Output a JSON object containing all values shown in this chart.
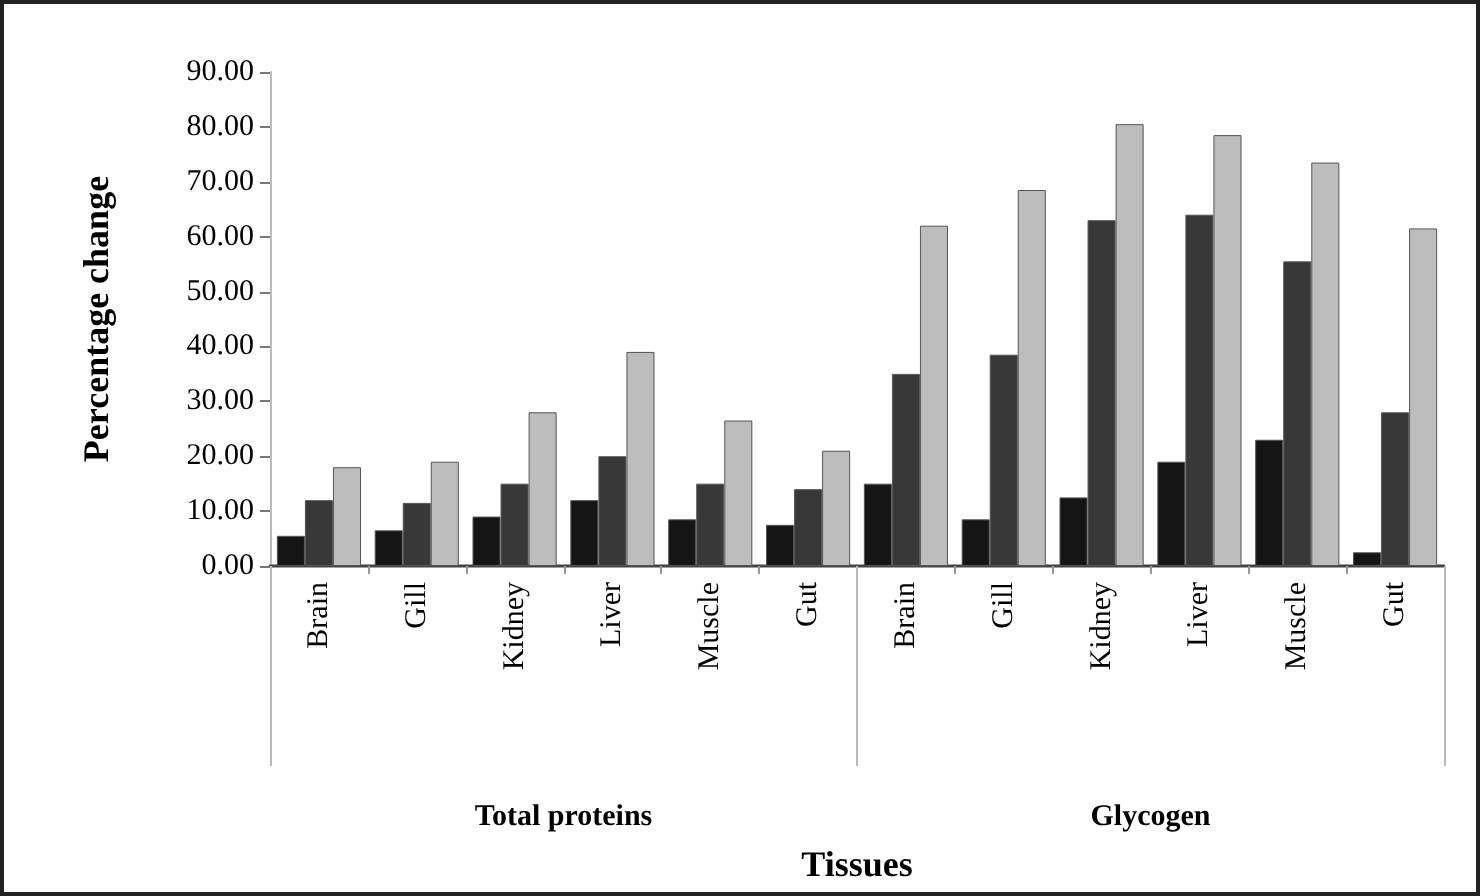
{
  "chart_data": {
    "type": "bar",
    "xlabel": "Tissues",
    "ylabel": "Percentage change",
    "categories": [
      "Brain",
      "Gill",
      "Kidney",
      "Liver",
      "Muscle",
      "Gut",
      "Brain",
      "Gill",
      "Kidney",
      "Liver",
      "Muscle",
      "Gut"
    ],
    "annotations": [
      "Total proteins",
      "Glycogen"
    ],
    "series": [
      {
        "color": "#151515",
        "values": [
          5.5,
          6.5,
          9,
          12,
          8.5,
          7.5,
          15,
          8.5,
          12.5,
          19,
          23,
          2.5
        ]
      },
      {
        "color": "#383838",
        "values": [
          12,
          11.5,
          15,
          20,
          15,
          14,
          35,
          38.5,
          63,
          64,
          55.5,
          28
        ]
      },
      {
        "color": "#bdbdbd",
        "values": [
          18,
          19,
          28,
          39,
          26.5,
          21,
          62,
          68.5,
          80.5,
          78.5,
          73.5,
          61.5
        ]
      }
    ],
    "ylim": [
      0,
      90
    ],
    "yticks": [
      {
        "value": 0,
        "label": "0.00"
      },
      {
        "value": 10,
        "label": "10.00"
      },
      {
        "value": 20,
        "label": "20.00"
      },
      {
        "value": 30,
        "label": "30.00"
      },
      {
        "value": 40,
        "label": "40.00"
      },
      {
        "value": 50,
        "label": "50.00"
      },
      {
        "value": 60,
        "label": "60.00"
      },
      {
        "value": 70,
        "label": "70.00"
      },
      {
        "value": 80,
        "label": "80.00"
      },
      {
        "value": 90,
        "label": "90.00"
      }
    ],
    "grid": false
  }
}
